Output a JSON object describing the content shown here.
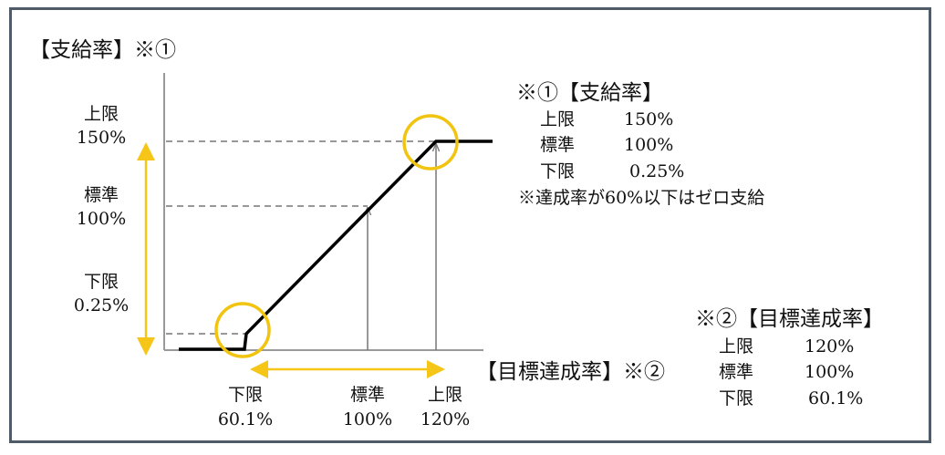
{
  "title": "【支給率】※①",
  "x_axis_title": "【目標達成率】※②",
  "y_axis": {
    "upper": {
      "label": "上限",
      "value": "150%"
    },
    "standard": {
      "label": "標準",
      "value": "100%"
    },
    "lower": {
      "label": "下限",
      "value": "0.25%"
    }
  },
  "x_axis": {
    "lower": {
      "label": "下限",
      "value": "60.1%"
    },
    "standard": {
      "label": "標準",
      "value": "100%"
    },
    "upper": {
      "label": "上限",
      "value": "120%"
    }
  },
  "note1": {
    "title": "※①【支給率】",
    "rows": [
      {
        "label": "上限",
        "value": "150%"
      },
      {
        "label": "標準",
        "value": "100%"
      },
      {
        "label": "下限",
        "value": "0.25%"
      }
    ],
    "footnote": "※達成率が60%以下はゼロ支給"
  },
  "note2": {
    "title": "※②【目標達成率】",
    "rows": [
      {
        "label": "上限",
        "value": "120%"
      },
      {
        "label": "標準",
        "value": "100%"
      },
      {
        "label": "下限",
        "value": "60.1%"
      }
    ]
  },
  "colors": {
    "frame": "#4f5b66",
    "curve": "#000000",
    "highlight": "#f1c40f",
    "guide": "#777777",
    "range_arrow": "#f5c518"
  }
}
